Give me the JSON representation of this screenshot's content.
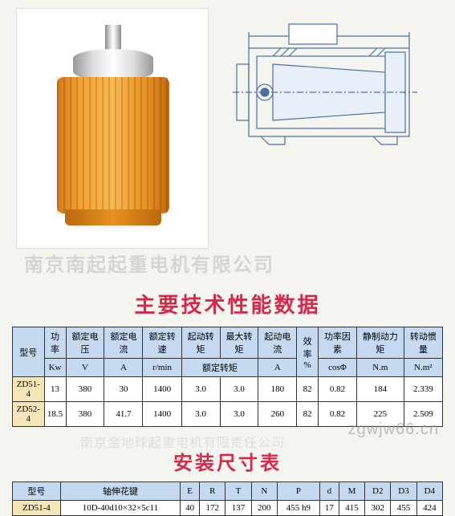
{
  "watermarks": {
    "company1": "南京南起起重电机有限公司",
    "url": "zgwjw66.cn",
    "company2": "南京金地球起重电机有限责任公司"
  },
  "titles": {
    "specs": "主要技术性能数据",
    "dimensions": "安装尺寸表"
  },
  "specs_table": {
    "headers": {
      "model": "型号",
      "power": "功率",
      "power_unit": "Kw",
      "voltage": "额定电压",
      "voltage_unit": "V",
      "current": "额定电流",
      "current_unit": "A",
      "speed": "额定转速",
      "speed_unit": "r/min",
      "start_torque": "起动转矩",
      "max_torque": "最大转矩",
      "rated_torque": "额定转矩",
      "start_current": "起动电流",
      "start_current_unit": "A",
      "efficiency": "效率",
      "efficiency_unit": "%",
      "power_factor": "功率因素",
      "power_factor_unit": "cosΦ",
      "brake_torque": "静制动力矩",
      "brake_torque_unit": "N.m",
      "inertia": "转动惯量",
      "inertia_unit": "N.m²"
    },
    "rows": [
      {
        "model": "ZD51-4",
        "power": "13",
        "voltage": "380",
        "current": "30",
        "speed": "1400",
        "start_t": "3.0",
        "max_t": "3.0",
        "start_c": "180",
        "eff": "82",
        "pf": "0.82",
        "brake": "184",
        "inertia": "2.339"
      },
      {
        "model": "ZD52-4",
        "power": "18.5",
        "voltage": "380",
        "current": "41.7",
        "speed": "1400",
        "start_t": "3.0",
        "max_t": "3.0",
        "start_c": "260",
        "eff": "82",
        "pf": "0.82",
        "brake": "225",
        "inertia": "2.509"
      }
    ]
  },
  "dims_table": {
    "headers": {
      "model": "型号",
      "spline": "轴伸花键",
      "E": "E",
      "R": "R",
      "T": "T",
      "N": "N",
      "P": "P",
      "d": "d",
      "M": "M",
      "D2": "D2",
      "D3": "D3",
      "D4": "D4"
    },
    "rows": [
      {
        "model": "ZD51-4",
        "spline": "10D-40d10×32×5c11",
        "E": "40",
        "R": "172",
        "T": "137",
        "N": "200",
        "P": "455 h9",
        "d": "17",
        "M": "415",
        "D2": "302",
        "D3": "455",
        "D4": "424"
      }
    ]
  },
  "diagram": {
    "line_color": "#4a6fa5",
    "hatch_color": "#5a7fb5",
    "bg_color": "#ffffff"
  }
}
